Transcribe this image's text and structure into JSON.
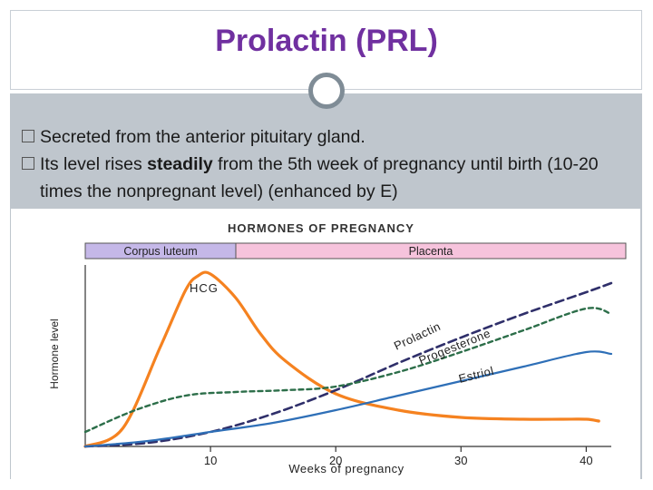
{
  "title": "Prolactin (PRL)",
  "bullets": [
    {
      "text": "Secreted from the anterior pituitary gland."
    },
    {
      "before": "Its level rises ",
      "bold": "steadily",
      "after": " from the 5th week of pregnancy until birth (10-20 times the nonpregnant level) (enhanced by E)"
    }
  ],
  "chart": {
    "title": "HORMONES OF PREGNANCY",
    "phases": [
      "Corpus luteum",
      "Placenta"
    ],
    "y_label": "Hormone level",
    "x_label": "Weeks of pregnancy",
    "x_ticks": [
      "10",
      "20",
      "30",
      "40"
    ],
    "curve_labels": {
      "hcg": "HCG",
      "prolactin": "Prolactin",
      "progesterone": "Progesterone",
      "estriol": "Estriol"
    },
    "colors": {
      "hcg": "#f58220",
      "prolactin": "#2f2f6a",
      "progesterone": "#2c6e49",
      "estriol": "#2e6fb7",
      "corpus_luteum_bar": "#c5b8e8",
      "placenta_bar": "#f6c3dc",
      "title_accent": "#7030a0"
    }
  },
  "chart_data": {
    "type": "line",
    "title": "HORMONES OF PREGNANCY",
    "xlabel": "Weeks of pregnancy",
    "ylabel": "Hormone level",
    "xlim": [
      0,
      42
    ],
    "ylim": [
      0,
      100
    ],
    "x_ticks": [
      10,
      20,
      30,
      40
    ],
    "grid": false,
    "series": [
      {
        "name": "HCG",
        "x": [
          0,
          3,
          6,
          8,
          9,
          10,
          12,
          14,
          16,
          20,
          25,
          30,
          35,
          38,
          40,
          41
        ],
        "y": [
          0,
          10,
          55,
          86,
          94,
          95,
          82,
          62,
          47,
          29,
          20,
          16,
          15,
          15,
          15,
          14
        ]
      },
      {
        "name": "Prolactin",
        "x": [
          0,
          5,
          10,
          15,
          20,
          25,
          30,
          35,
          40,
          42
        ],
        "y": [
          0,
          2,
          8,
          18,
          31,
          46,
          60,
          73,
          85,
          90
        ]
      },
      {
        "name": "Progesterone",
        "x": [
          0,
          4,
          8,
          12,
          16,
          20,
          25,
          30,
          35,
          40,
          42
        ],
        "y": [
          8,
          20,
          28,
          30,
          31,
          33,
          41,
          52,
          64,
          76,
          73
        ]
      },
      {
        "name": "Estriol",
        "x": [
          0,
          5,
          10,
          15,
          20,
          25,
          30,
          35,
          40,
          42
        ],
        "y": [
          0,
          3,
          8,
          13,
          20,
          28,
          36,
          44,
          52,
          51
        ]
      }
    ],
    "phases": [
      {
        "name": "Corpus luteum",
        "x_range": [
          0,
          10
        ]
      },
      {
        "name": "Placenta",
        "x_range": [
          10,
          42
        ]
      }
    ]
  }
}
